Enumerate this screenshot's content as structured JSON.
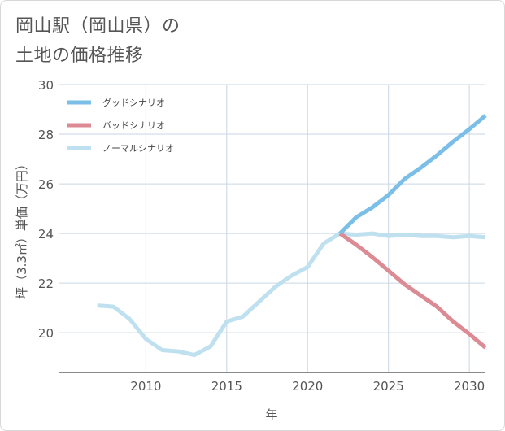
{
  "page": {
    "title_line1": "岡山駅（岡山県）の",
    "title_line2": "土地の価格推移"
  },
  "chart_data": {
    "type": "line",
    "title": "岡山駅（岡山県）の 土地の価格推移",
    "xlabel": "年",
    "ylabel": "坪（3.3㎡）単価（万円）",
    "xlim": [
      2004.6,
      2031
    ],
    "ylim": [
      18.4,
      30
    ],
    "xticks": [
      2010,
      2015,
      2020,
      2025,
      2030
    ],
    "yticks": [
      20,
      22,
      24,
      26,
      28,
      30
    ],
    "grid": true,
    "legend_position": "top-left",
    "series": [
      {
        "name": "グッドシナリオ",
        "color": "#7bbfe8",
        "x": [
          2022,
          2023,
          2024,
          2025,
          2026,
          2027,
          2028,
          2029,
          2030,
          2031
        ],
        "y": [
          24.0,
          24.65,
          25.05,
          25.55,
          26.2,
          26.65,
          27.15,
          27.7,
          28.2,
          28.75
        ]
      },
      {
        "name": "バッドシナリオ",
        "color": "#dc8a93",
        "x": [
          2022,
          2023,
          2024,
          2025,
          2026,
          2027,
          2028,
          2029,
          2030,
          2031
        ],
        "y": [
          24.0,
          23.55,
          23.05,
          22.5,
          21.95,
          21.5,
          21.05,
          20.45,
          19.95,
          19.4
        ]
      },
      {
        "name": "ノーマルシナリオ",
        "color": "#bfe0ef",
        "x": [
          2007,
          2008,
          2009,
          2010,
          2011,
          2012,
          2013,
          2014,
          2015,
          2016,
          2017,
          2018,
          2019,
          2020,
          2021,
          2022,
          2023,
          2024,
          2025,
          2026,
          2027,
          2028,
          2029,
          2030,
          2031
        ],
        "y": [
          21.1,
          21.05,
          20.55,
          19.75,
          19.3,
          19.25,
          19.1,
          19.45,
          20.45,
          20.65,
          21.25,
          21.85,
          22.3,
          22.65,
          23.6,
          24.0,
          23.95,
          24.0,
          23.9,
          23.95,
          23.9,
          23.9,
          23.85,
          23.9,
          23.85
        ]
      }
    ]
  }
}
